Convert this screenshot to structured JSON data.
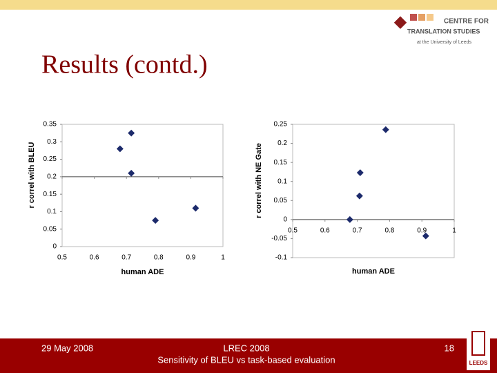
{
  "slide": {
    "title": "Results (contd.)",
    "logo": {
      "line1": "CENTRE FOR",
      "line2": "TRANSLATION STUDIES",
      "line3": "at the University of Leeds"
    },
    "footer": {
      "date": "29 May 2008",
      "event": "LREC 2008",
      "subtitle": "Sensitivity of BLEU vs task-based evaluation",
      "page": "18",
      "university": "LEEDS"
    }
  },
  "chart_data": [
    {
      "type": "scatter",
      "x_label": "human ADE",
      "y_label": "r correl with BLEU",
      "x": [
        0.68,
        0.715,
        0.715,
        0.79,
        0.915
      ],
      "values": [
        0.28,
        0.325,
        0.21,
        0.075,
        0.11
      ],
      "color": "#1c2a6b",
      "xlim": [
        0.5,
        1
      ],
      "xticks": [
        0.5,
        0.6,
        0.7,
        0.8,
        0.9,
        1
      ],
      "ylim": [
        0,
        0.35
      ],
      "yticks": [
        0,
        0.05,
        0.1,
        0.15,
        0.2,
        0.25,
        0.3,
        0.35
      ],
      "axis_cross": 0.2
    },
    {
      "type": "scatter",
      "x_label": "human ADE",
      "y_label": "r correl with NE Gate",
      "x": [
        0.677,
        0.709,
        0.707,
        0.788,
        0.912
      ],
      "values": [
        0,
        0.123,
        0.062,
        0.236,
        -0.043
      ],
      "color": "#1c2a6b",
      "xlim": [
        0.5,
        1
      ],
      "xticks": [
        0.5,
        0.6,
        0.7,
        0.8,
        0.9,
        1
      ],
      "ylim": [
        -0.1,
        0.25
      ],
      "yticks": [
        -0.1,
        -0.05,
        0,
        0.05,
        0.1,
        0.15,
        0.2,
        0.25
      ],
      "axis_cross": 0
    }
  ]
}
